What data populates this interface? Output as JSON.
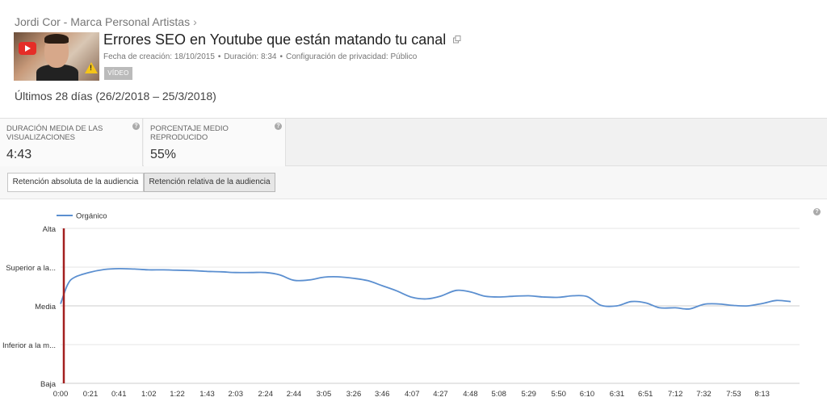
{
  "breadcrumb": {
    "channel": "Jordi Cor - Marca Personal Artistas",
    "chevron": "›"
  },
  "video": {
    "title": "Errores SEO en Youtube que están matando tu canal",
    "created": "Fecha de creación: 18/10/2015",
    "duration": "Duración: 8:34",
    "privacy": "Configuración de privacidad: Público",
    "badge": "VÍDEO"
  },
  "date_range": "Últimos 28 días (26/2/2018 – 25/3/2018)",
  "metrics": [
    {
      "label": "DURACIÓN MEDIA DE LAS VISUALIZACIONES",
      "value": "4:43"
    },
    {
      "label": "PORCENTAJE MEDIO REPRODUCIDO",
      "value": "55%"
    }
  ],
  "tabs": [
    {
      "label": "Retención absoluta de la audiencia",
      "active": false
    },
    {
      "label": "Retención relativa de la audiencia",
      "active": true
    }
  ],
  "help_glyph": "?",
  "colors": {
    "line": "#5b8fd0",
    "marker": "#a31f1f",
    "grid": "#e6e6e6",
    "baseline": "#cccccc"
  },
  "chart_data": {
    "type": "line",
    "legend": "Orgánico",
    "legend_position": "top-left",
    "grid": true,
    "y_categories": [
      "Alta",
      "Superior a la...",
      "Media",
      "Inferior a la m...",
      "Baja"
    ],
    "ylim": [
      0,
      4
    ],
    "xlim": [
      0,
      517
    ],
    "x_ticks": [
      "0:00",
      "0:21",
      "0:41",
      "1:02",
      "1:22",
      "1:43",
      "2:03",
      "2:24",
      "2:44",
      "3:05",
      "3:26",
      "3:46",
      "4:07",
      "4:27",
      "4:48",
      "5:08",
      "5:29",
      "5:50",
      "6:10",
      "6:31",
      "6:51",
      "7:12",
      "7:32",
      "7:53",
      "8:13"
    ],
    "x_tick_seconds": [
      0,
      21,
      41,
      62,
      82,
      103,
      123,
      144,
      164,
      185,
      206,
      226,
      247,
      267,
      288,
      308,
      329,
      350,
      370,
      391,
      411,
      432,
      452,
      473,
      493
    ],
    "marker_x": "0:00",
    "series": [
      {
        "name": "Orgánico",
        "x": [
          0,
          5,
          10,
          21,
          31,
          41,
          52,
          62,
          72,
          82,
          93,
          103,
          113,
          123,
          134,
          144,
          154,
          164,
          175,
          185,
          195,
          206,
          216,
          226,
          236,
          247,
          257,
          267,
          278,
          288,
          298,
          308,
          319,
          329,
          339,
          350,
          360,
          370,
          380,
          391,
          401,
          411,
          421,
          432,
          442,
          452,
          462,
          473,
          483,
          493,
          503,
          513
        ],
        "y": [
          2.05,
          2.55,
          2.74,
          2.87,
          2.94,
          2.96,
          2.95,
          2.93,
          2.93,
          2.92,
          2.91,
          2.89,
          2.88,
          2.86,
          2.86,
          2.86,
          2.8,
          2.66,
          2.67,
          2.74,
          2.75,
          2.71,
          2.65,
          2.52,
          2.39,
          2.22,
          2.18,
          2.25,
          2.4,
          2.36,
          2.25,
          2.23,
          2.25,
          2.26,
          2.23,
          2.22,
          2.26,
          2.24,
          2.01,
          2.0,
          2.11,
          2.08,
          1.95,
          1.95,
          1.92,
          2.04,
          2.05,
          2.01,
          2.0,
          2.06,
          2.14,
          2.11
        ]
      }
    ]
  }
}
